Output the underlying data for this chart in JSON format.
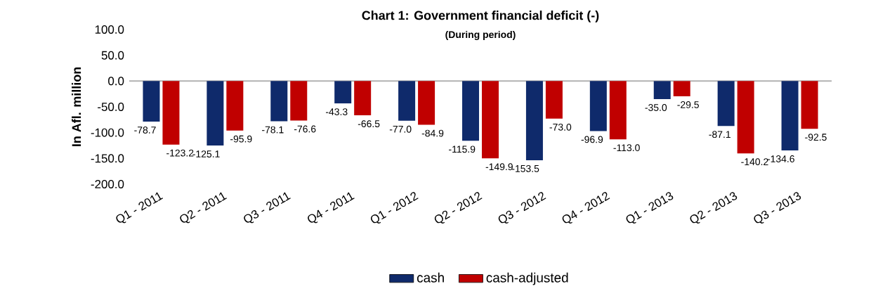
{
  "chart_data": {
    "type": "bar",
    "title": "Chart 1: Government financial deficit (-)",
    "subtitle": "(During period)",
    "ylabel": "In Afl. million",
    "categories": [
      "Q1 - 2011",
      "Q2 - 2011",
      "Q3 - 2011",
      "Q4 - 2011",
      "Q1 - 2012",
      "Q2 - 2012",
      "Q3 - 2012",
      "Q4 - 2012",
      "Q1 - 2013",
      "Q2 - 2013",
      "Q3 - 2013"
    ],
    "series": [
      {
        "name": "cash",
        "color": "#0f2a6b",
        "values": [
          -78.7,
          -125.1,
          -78.1,
          -43.3,
          -77.0,
          -115.9,
          -153.5,
          -96.9,
          -35.0,
          -87.1,
          -134.6
        ],
        "value_labels": [
          "-78.7",
          "-125.1",
          "-78.1",
          "-43.3",
          "-77.0",
          "-115.9",
          "-153.5",
          "-96.9",
          "-35.0",
          "-87.1",
          "-134.6"
        ]
      },
      {
        "name": "cash-adjusted",
        "color": "#c00000",
        "values": [
          -123.2,
          -95.9,
          -76.6,
          -66.5,
          -84.9,
          -149.9,
          -73.0,
          -113.0,
          -29.5,
          -140.2,
          -92.5
        ],
        "value_labels": [
          "-123.2",
          "-95.9",
          "-76.6",
          "-66.5",
          "-84.9",
          "-149.9",
          "-73.0",
          "-113.0",
          "-29.5",
          "-140.2",
          "-92.5"
        ]
      }
    ],
    "ylim": [
      -200,
      100
    ],
    "yticks": [
      {
        "value": -200,
        "label": "-200.0"
      },
      {
        "value": -150,
        "label": "-150.0"
      },
      {
        "value": -100,
        "label": "-100.0"
      },
      {
        "value": -50,
        "label": "-50.0"
      },
      {
        "value": 0,
        "label": "0.0"
      },
      {
        "value": 50,
        "label": "50.0"
      },
      {
        "value": 100,
        "label": "100.0"
      }
    ],
    "legend": "bottom"
  }
}
